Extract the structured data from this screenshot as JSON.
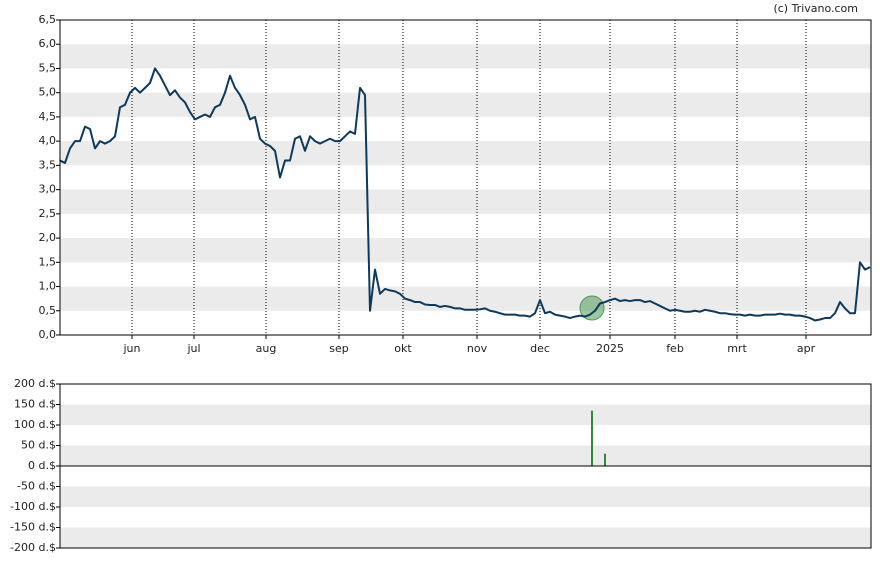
{
  "chart_data": [
    {
      "type": "line",
      "source": "(c) Trivano.com",
      "xlim": [
        0,
        162.2
      ],
      "xticks": [
        {
          "value": 14.4,
          "label": "jun"
        },
        {
          "value": 26.8,
          "label": "jul"
        },
        {
          "value": 41.2,
          "label": "aug"
        },
        {
          "value": 55.8,
          "label": "sep"
        },
        {
          "value": 68.6,
          "label": "okt"
        },
        {
          "value": 83.4,
          "label": "nov"
        },
        {
          "value": 96,
          "label": "dec"
        },
        {
          "value": 110,
          "label": "2025"
        },
        {
          "value": 123,
          "label": "feb"
        },
        {
          "value": 135.4,
          "label": "mrt"
        },
        {
          "value": 149.2,
          "label": "apr"
        }
      ],
      "ylim": [
        0,
        6.5
      ],
      "yticks": [
        {
          "value": 0,
          "label": "0,0"
        },
        {
          "value": 0.5,
          "label": "0,5"
        },
        {
          "value": 1,
          "label": "1,0"
        },
        {
          "value": 1.5,
          "label": "1,5"
        },
        {
          "value": 2,
          "label": "2,0"
        },
        {
          "value": 2.5,
          "label": "2,5"
        },
        {
          "value": 3,
          "label": "3,0"
        },
        {
          "value": 3.5,
          "label": "3,5"
        },
        {
          "value": 4,
          "label": "4,0"
        },
        {
          "value": 4.5,
          "label": "4,5"
        },
        {
          "value": 5,
          "label": "5,0"
        },
        {
          "value": 5.5,
          "label": "5,5"
        },
        {
          "value": 6,
          "label": "6,0"
        },
        {
          "value": 6.5,
          "label": "6,5"
        }
      ],
      "color": "#0d3a5c",
      "values": [
        3.6,
        3.55,
        3.85,
        4.0,
        4.0,
        4.3,
        4.25,
        3.85,
        4.0,
        3.95,
        4.0,
        4.1,
        4.7,
        4.75,
        5.0,
        5.1,
        5.0,
        5.1,
        5.2,
        5.5,
        5.35,
        5.15,
        4.95,
        5.05,
        4.9,
        4.8,
        4.6,
        4.45,
        4.5,
        4.55,
        4.5,
        4.7,
        4.75,
        5.0,
        5.35,
        5.1,
        4.95,
        4.75,
        4.45,
        4.5,
        4.05,
        3.95,
        3.9,
        3.8,
        3.25,
        3.6,
        3.6,
        4.05,
        4.1,
        3.8,
        4.1,
        4.0,
        3.95,
        4.0,
        4.05,
        4.0,
        4.0,
        4.1,
        4.2,
        4.15,
        5.1,
        4.95,
        0.5,
        1.35,
        0.85,
        0.95,
        0.92,
        0.9,
        0.85,
        0.75,
        0.72,
        0.68,
        0.68,
        0.63,
        0.62,
        0.62,
        0.58,
        0.6,
        0.58,
        0.55,
        0.55,
        0.52,
        0.52,
        0.52,
        0.53,
        0.55,
        0.5,
        0.48,
        0.45,
        0.42,
        0.42,
        0.42,
        0.4,
        0.4,
        0.38,
        0.45,
        0.72,
        0.45,
        0.48,
        0.42,
        0.4,
        0.38,
        0.35,
        0.38,
        0.4,
        0.38,
        0.42,
        0.5,
        0.65,
        0.68,
        0.72,
        0.75,
        0.7,
        0.72,
        0.7,
        0.72,
        0.72,
        0.68,
        0.7,
        0.65,
        0.6,
        0.55,
        0.5,
        0.52,
        0.5,
        0.48,
        0.48,
        0.5,
        0.48,
        0.52,
        0.5,
        0.48,
        0.45,
        0.45,
        0.43,
        0.42,
        0.42,
        0.4,
        0.42,
        0.4,
        0.4,
        0.42,
        0.42,
        0.42,
        0.44,
        0.42,
        0.42,
        0.4,
        0.4,
        0.38,
        0.35,
        0.3,
        0.32,
        0.35,
        0.35,
        0.45,
        0.68,
        0.55,
        0.45,
        0.45,
        1.5,
        1.35,
        1.4
      ]
    },
    {
      "type": "bar",
      "xlim": [
        0,
        162.2
      ],
      "ylim": [
        -200,
        200
      ],
      "yticks": [
        {
          "value": -200,
          "label": "-200 d.$"
        },
        {
          "value": -150,
          "label": "-150 d.$"
        },
        {
          "value": -100,
          "label": "-100 d.$"
        },
        {
          "value": -50,
          "label": "-50 d.$"
        },
        {
          "value": 0,
          "label": "0 d.$"
        },
        {
          "value": 50,
          "label": "50 d.$"
        },
        {
          "value": 100,
          "label": "100 d.$"
        },
        {
          "value": 150,
          "label": "150 d.$"
        },
        {
          "value": 200,
          "label": "200 d.$"
        }
      ],
      "color": "#2e8b3e",
      "x": [
        106.4,
        109
      ],
      "values": [
        135,
        30
      ]
    }
  ]
}
